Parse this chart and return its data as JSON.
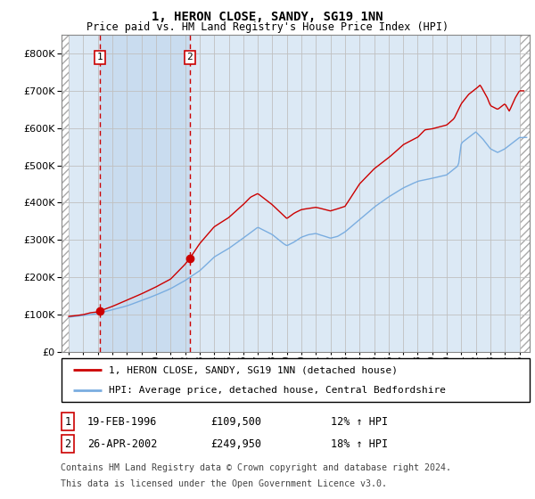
{
  "title": "1, HERON CLOSE, SANDY, SG19 1NN",
  "subtitle": "Price paid vs. HM Land Registry's House Price Index (HPI)",
  "ylim": [
    0,
    850000
  ],
  "yticks": [
    0,
    100000,
    200000,
    300000,
    400000,
    500000,
    600000,
    700000,
    800000
  ],
  "ytick_labels": [
    "£0",
    "£100K",
    "£200K",
    "£300K",
    "£400K",
    "£500K",
    "£600K",
    "£700K",
    "£800K"
  ],
  "hpi_color": "#7aade0",
  "price_color": "#cc0000",
  "bg_color": "#dce9f5",
  "grid_color": "#c0c0c0",
  "sale1_year": 1996.13,
  "sale1_price": 109500,
  "sale2_year": 2002.32,
  "sale2_price": 249950,
  "legend_line1": "1, HERON CLOSE, SANDY, SG19 1NN (detached house)",
  "legend_line2": "HPI: Average price, detached house, Central Bedfordshire",
  "table_row1": [
    "1",
    "19-FEB-1996",
    "£109,500",
    "12% ↑ HPI"
  ],
  "table_row2": [
    "2",
    "26-APR-2002",
    "£249,950",
    "18% ↑ HPI"
  ],
  "footnote1": "Contains HM Land Registry data © Crown copyright and database right 2024.",
  "footnote2": "This data is licensed under the Open Government Licence v3.0.",
  "xlim_start": 1993.5,
  "xlim_end": 2025.7,
  "hatch_end": 1994.0
}
